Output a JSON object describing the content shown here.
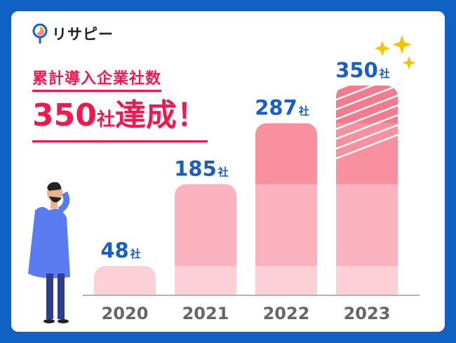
{
  "logo": {
    "text": "リサピー"
  },
  "headline": {
    "subtitle": "累計導入企業社数",
    "value": "350",
    "unit": "社",
    "suffix": "達成！"
  },
  "chart_data": {
    "type": "bar",
    "categories": [
      "2020",
      "2021",
      "2022",
      "2023"
    ],
    "values": [
      48,
      185,
      287,
      350
    ],
    "value_unit": "社",
    "ylim": [
      0,
      350
    ],
    "grid": false,
    "colors": {
      "2020": "#fdd0d8",
      "2021": "#fbb3c0",
      "2022": "#f8909f",
      "2023": "#f47a8e",
      "label": "#1a5fbf",
      "year": "#666666"
    }
  }
}
